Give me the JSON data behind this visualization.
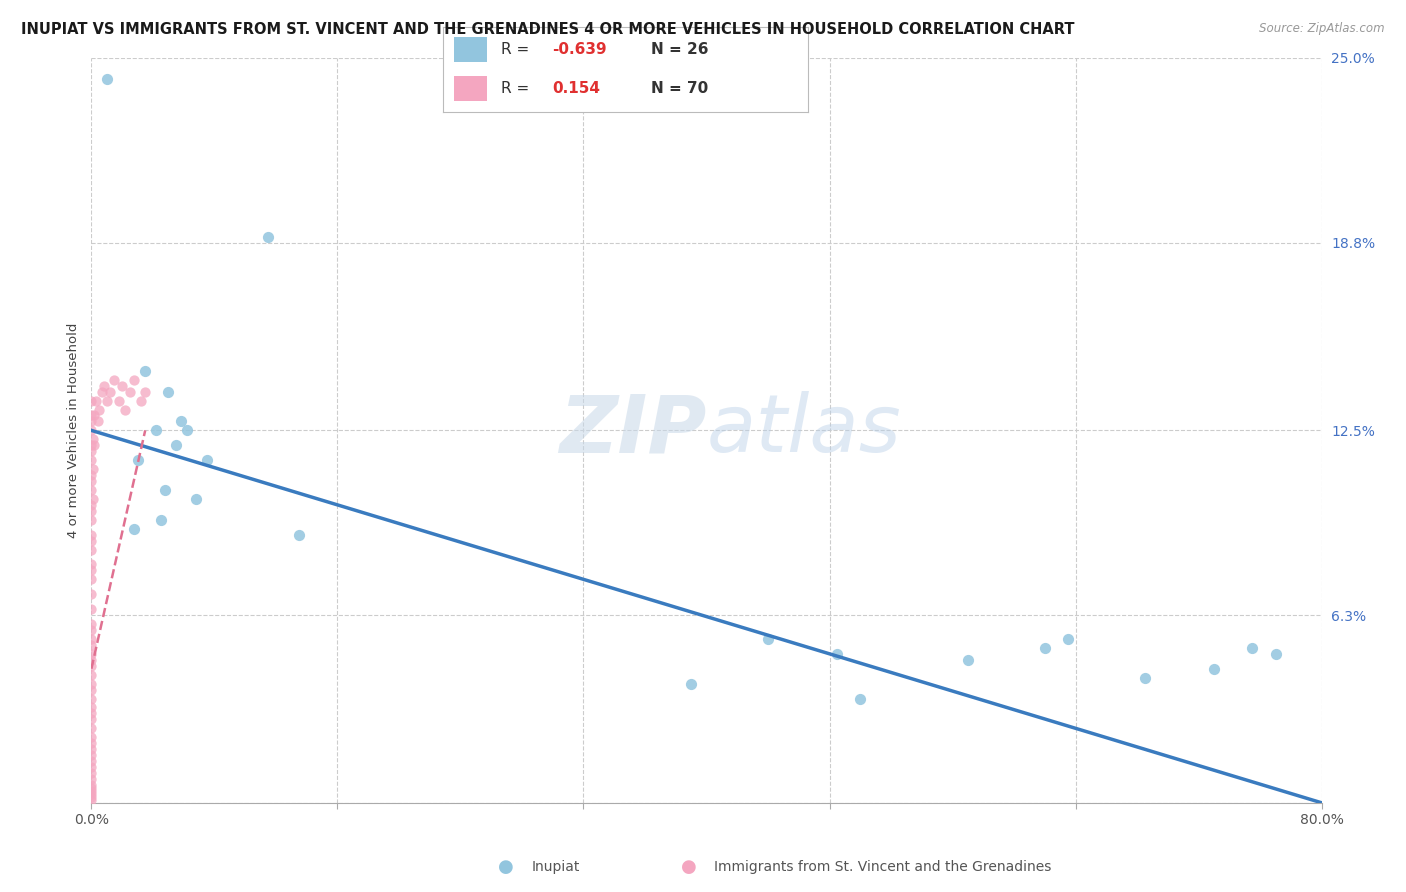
{
  "title": "INUPIAT VS IMMIGRANTS FROM ST. VINCENT AND THE GRENADINES 4 OR MORE VEHICLES IN HOUSEHOLD CORRELATION CHART",
  "source": "Source: ZipAtlas.com",
  "ylabel": "4 or more Vehicles in Household",
  "xlim": [
    0.0,
    80.0
  ],
  "ylim": [
    0.0,
    25.0
  ],
  "yticks_right": [
    0.0,
    6.3,
    12.5,
    18.8,
    25.0
  ],
  "ytick_right_labels": [
    "",
    "6.3%",
    "12.5%",
    "18.8%",
    "25.0%"
  ],
  "color_inupiat": "#92c5de",
  "color_immigrant": "#f4a6c0",
  "color_reg_inupiat": "#3a7bbf",
  "color_reg_immigrant": "#e07090",
  "watermark_zip": "ZIP",
  "watermark_atlas": "atlas",
  "inupiat_x": [
    1.0,
    3.5,
    5.0,
    5.8,
    4.2,
    3.0,
    6.2,
    5.5,
    4.8,
    2.8,
    7.5,
    11.5,
    4.5,
    6.8,
    13.5,
    44.0,
    48.5,
    57.0,
    62.0,
    63.5,
    68.5,
    73.0,
    75.5,
    77.0,
    50.0,
    39.0
  ],
  "inupiat_y": [
    24.3,
    14.5,
    13.8,
    12.8,
    12.5,
    11.5,
    12.5,
    12.0,
    10.5,
    9.2,
    11.5,
    19.0,
    9.5,
    10.2,
    9.0,
    5.5,
    5.0,
    4.8,
    5.2,
    5.5,
    4.2,
    4.5,
    5.2,
    5.0,
    3.5,
    4.0
  ],
  "immigrant_x": [
    0.0,
    0.0,
    0.0,
    0.0,
    0.0,
    0.0,
    0.0,
    0.0,
    0.0,
    0.0,
    0.0,
    0.0,
    0.0,
    0.0,
    0.0,
    0.0,
    0.0,
    0.0,
    0.0,
    0.0,
    0.0,
    0.0,
    0.0,
    0.0,
    0.0,
    0.0,
    0.0,
    0.0,
    0.0,
    0.0,
    0.0,
    0.0,
    0.0,
    0.0,
    0.0,
    0.0,
    0.0,
    0.0,
    0.0,
    0.0,
    0.0,
    0.0,
    0.0,
    0.0,
    0.0,
    0.0,
    0.0,
    0.0,
    0.0,
    0.0,
    0.1,
    0.1,
    0.1,
    0.2,
    0.2,
    0.3,
    0.4,
    0.5,
    0.7,
    0.8,
    1.0,
    1.2,
    1.5,
    1.8,
    2.0,
    2.2,
    2.5,
    2.8,
    3.2,
    3.5
  ],
  "immigrant_y": [
    0.1,
    0.2,
    0.3,
    0.4,
    0.5,
    0.6,
    0.8,
    1.0,
    1.2,
    1.4,
    1.6,
    1.8,
    2.0,
    2.2,
    2.5,
    2.8,
    3.0,
    3.2,
    3.5,
    3.8,
    4.0,
    4.3,
    4.6,
    4.8,
    5.0,
    5.3,
    5.5,
    5.8,
    6.0,
    6.5,
    7.0,
    7.5,
    8.0,
    8.5,
    9.0,
    9.5,
    10.0,
    10.5,
    11.0,
    11.5,
    12.0,
    12.5,
    13.0,
    13.5,
    12.8,
    11.8,
    10.8,
    9.8,
    8.8,
    7.8,
    12.2,
    11.2,
    10.2,
    13.0,
    12.0,
    13.5,
    12.8,
    13.2,
    13.8,
    14.0,
    13.5,
    13.8,
    14.2,
    13.5,
    14.0,
    13.2,
    13.8,
    14.2,
    13.5,
    13.8
  ],
  "reg_blue_x0": 0.0,
  "reg_blue_y0": 12.5,
  "reg_blue_x1": 80.0,
  "reg_blue_y1": 0.0,
  "reg_pink_x0": 0.0,
  "reg_pink_y0": 4.5,
  "reg_pink_x1": 3.5,
  "reg_pink_y1": 12.5
}
